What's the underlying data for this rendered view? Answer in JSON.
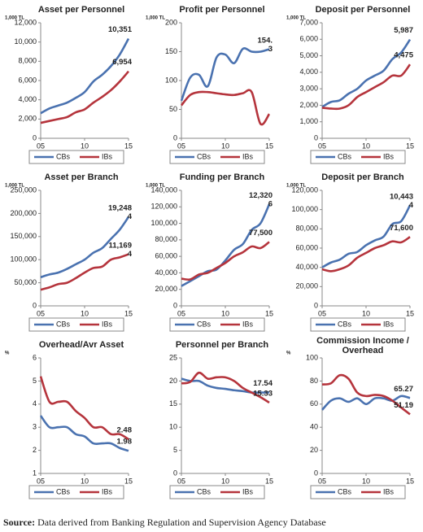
{
  "chart_data": [
    {
      "type": "line",
      "title": "Asset per Personnel",
      "unit": "1,000 TL",
      "x": [
        5,
        6,
        7,
        8,
        9,
        10,
        11,
        12,
        13,
        14,
        15
      ],
      "xlim": [
        5,
        15
      ],
      "xticks": [
        {
          "value": 5,
          "label": "05"
        },
        10,
        15
      ],
      "ylim": [
        0,
        12000
      ],
      "yticks": [
        0,
        {
          "value": 2000,
          "label": "2,000"
        },
        {
          "value": 4000,
          "label": "4,000"
        },
        {
          "value": 6000,
          "label": "6,000"
        },
        {
          "value": 8000,
          "label": "8,000"
        },
        {
          "value": 10000,
          "label": "10,000"
        },
        {
          "value": 12000,
          "label": "12,000"
        }
      ],
      "series": [
        {
          "name": "CBs",
          "color": "#4a72b0",
          "values": [
            2600,
            3100,
            3400,
            3700,
            4200,
            4800,
            5900,
            6600,
            7500,
            8700,
            10351
          ],
          "value_labels": [
            null,
            null,
            null,
            null,
            null,
            null,
            null,
            null,
            null,
            null,
            "10,351"
          ]
        },
        {
          "name": "IBs",
          "color": "#b5343c",
          "values": [
            1600,
            1800,
            2000,
            2200,
            2700,
            3000,
            3700,
            4300,
            5000,
            5900,
            6954
          ],
          "value_labels": [
            null,
            null,
            null,
            null,
            null,
            null,
            null,
            null,
            null,
            null,
            "6,954"
          ]
        }
      ]
    },
    {
      "type": "line",
      "title": "Profit per Personnel",
      "unit": "1,000 TL",
      "label_color": "#222222",
      "x": [
        5,
        6,
        7,
        8,
        9,
        10,
        11,
        12,
        13,
        14,
        15
      ],
      "xlim": [
        5,
        15
      ],
      "xticks": [
        {
          "value": 5,
          "label": "05"
        },
        10,
        15
      ],
      "ylim": [
        0,
        200
      ],
      "yticks": [
        0,
        50,
        100,
        150,
        200
      ],
      "series": [
        {
          "name": "CBs",
          "color": "#4a72b0",
          "values": [
            65,
            105,
            110,
            90,
            140,
            145,
            130,
            155,
            150,
            150,
            154.3
          ],
          "value_labels": [
            null,
            null,
            null,
            null,
            null,
            null,
            null,
            null,
            null,
            null,
            "154.\n3"
          ]
        },
        {
          "name": "IBs",
          "color": "#b5343c",
          "values": [
            57,
            75,
            80,
            80,
            78,
            76,
            75,
            78,
            80,
            25,
            42.1
          ]
        }
      ]
    },
    {
      "type": "line",
      "title": "Deposit per Personnel",
      "unit": "1,000 TL",
      "x": [
        5,
        6,
        7,
        8,
        9,
        10,
        11,
        12,
        13,
        14,
        15
      ],
      "xlim": [
        5,
        15
      ],
      "xticks": [
        {
          "value": 5,
          "label": "05"
        },
        10,
        15
      ],
      "ylim": [
        0,
        7000
      ],
      "yticks": [
        0,
        {
          "value": 1000,
          "label": "1,000"
        },
        {
          "value": 2000,
          "label": "2,000"
        },
        {
          "value": 3000,
          "label": "3,000"
        },
        {
          "value": 4000,
          "label": "4,000"
        },
        {
          "value": 5000,
          "label": "5,000"
        },
        {
          "value": 6000,
          "label": "6,000"
        },
        {
          "value": 7000,
          "label": "7,000"
        }
      ],
      "series": [
        {
          "name": "CBs",
          "color": "#4a72b0",
          "values": [
            1900,
            2200,
            2300,
            2700,
            3000,
            3500,
            3800,
            4100,
            4800,
            5200,
            5987
          ],
          "value_labels": [
            null,
            null,
            null,
            null,
            null,
            null,
            null,
            null,
            null,
            null,
            "5,987"
          ]
        },
        {
          "name": "IBs",
          "color": "#b5343c",
          "values": [
            1850,
            1800,
            1800,
            2000,
            2500,
            2800,
            3100,
            3400,
            3800,
            3800,
            4475
          ],
          "value_labels": [
            null,
            null,
            null,
            null,
            null,
            null,
            null,
            null,
            null,
            null,
            "4,475"
          ]
        }
      ]
    },
    {
      "type": "line",
      "title": "Asset per Branch",
      "unit": "1,000 TL",
      "x": [
        5,
        6,
        7,
        8,
        9,
        10,
        11,
        12,
        13,
        14,
        15
      ],
      "xlim": [
        5,
        15
      ],
      "xticks": [
        {
          "value": 5,
          "label": "05"
        },
        10,
        15
      ],
      "ylim": [
        0,
        250000
      ],
      "yticks": [
        0,
        {
          "value": 50000,
          "label": "50,000"
        },
        {
          "value": 100000,
          "label": "100,000"
        },
        {
          "value": 150000,
          "label": "150,000"
        },
        {
          "value": 200000,
          "label": "200,000"
        },
        {
          "value": 250000,
          "label": "250,000"
        }
      ],
      "series": [
        {
          "name": "CBs",
          "color": "#4a72b0",
          "values": [
            62000,
            68000,
            72000,
            80000,
            90000,
            100000,
            115000,
            125000,
            145000,
            165000,
            192484
          ],
          "value_labels": [
            null,
            null,
            null,
            null,
            null,
            null,
            null,
            null,
            null,
            null,
            "19,248\n4"
          ]
        },
        {
          "name": "IBs",
          "color": "#b5343c",
          "values": [
            35000,
            40000,
            47000,
            50000,
            60000,
            72000,
            82000,
            85000,
            100000,
            105000,
            111694
          ],
          "value_labels": [
            null,
            null,
            null,
            null,
            null,
            null,
            null,
            null,
            null,
            null,
            "11,169\n4"
          ]
        }
      ]
    },
    {
      "type": "line",
      "title": "Funding per Branch",
      "unit": "1,000 TL",
      "x": [
        5,
        6,
        7,
        8,
        9,
        10,
        11,
        12,
        13,
        14,
        15
      ],
      "xlim": [
        5,
        15
      ],
      "xticks": [
        {
          "value": 5,
          "label": "05"
        },
        10,
        15
      ],
      "ylim": [
        0,
        140000
      ],
      "yticks": [
        0,
        {
          "value": 20000,
          "label": "20,000"
        },
        {
          "value": 40000,
          "label": "40,000"
        },
        {
          "value": 60000,
          "label": "60,000"
        },
        {
          "value": 80000,
          "label": "80,000"
        },
        {
          "value": 100000,
          "label": "100,000"
        },
        {
          "value": 120000,
          "label": "120,000"
        },
        {
          "value": 140000,
          "label": "140,000"
        }
      ],
      "series": [
        {
          "name": "CBs",
          "color": "#4a72b0",
          "values": [
            24000,
            30000,
            36000,
            42000,
            44000,
            55000,
            68000,
            75000,
            92000,
            100000,
            123206
          ],
          "value_labels": [
            null,
            null,
            null,
            null,
            null,
            null,
            null,
            null,
            null,
            null,
            "12,320\n6"
          ]
        },
        {
          "name": "IBs",
          "color": "#b5343c",
          "values": [
            33000,
            32000,
            38000,
            40000,
            46000,
            52000,
            60000,
            65000,
            72000,
            70000,
            77500
          ],
          "value_labels": [
            null,
            null,
            null,
            null,
            null,
            null,
            null,
            null,
            null,
            null,
            "77,500"
          ]
        }
      ]
    },
    {
      "type": "line",
      "title": "Deposit per Branch",
      "unit": "1,000 TL",
      "x": [
        5,
        6,
        7,
        8,
        9,
        10,
        11,
        12,
        13,
        14,
        15
      ],
      "xlim": [
        5,
        15
      ],
      "xticks": [
        {
          "value": 5,
          "label": "05"
        },
        10,
        15
      ],
      "ylim": [
        0,
        120000
      ],
      "yticks": [
        0,
        {
          "value": 20000,
          "label": "20,000"
        },
        {
          "value": 40000,
          "label": "40,000"
        },
        {
          "value": 60000,
          "label": "60,000"
        },
        {
          "value": 80000,
          "label": "80,000"
        },
        {
          "value": 100000,
          "label": "100,000"
        },
        {
          "value": 120000,
          "label": "120,000"
        }
      ],
      "series": [
        {
          "name": "CBs",
          "color": "#4a72b0",
          "values": [
            40000,
            45000,
            48000,
            54000,
            56000,
            63000,
            68000,
            72000,
            85000,
            88000,
            104434
          ],
          "value_labels": [
            null,
            null,
            null,
            null,
            null,
            null,
            null,
            null,
            null,
            null,
            "10,443\n4"
          ]
        },
        {
          "name": "IBs",
          "color": "#b5343c",
          "values": [
            38000,
            36000,
            38000,
            42000,
            50000,
            55000,
            60000,
            63000,
            67000,
            66000,
            71600
          ],
          "value_labels": [
            null,
            null,
            null,
            null,
            null,
            null,
            null,
            null,
            null,
            null,
            "71,600"
          ]
        }
      ]
    },
    {
      "type": "line",
      "title": "Overhead/Avr Asset",
      "unit": "%",
      "x": [
        5,
        6,
        7,
        8,
        9,
        10,
        11,
        12,
        13,
        14,
        15
      ],
      "xlim": [
        5,
        15
      ],
      "xticks": [
        {
          "value": 5,
          "label": "05"
        },
        10,
        15
      ],
      "ylim": [
        1,
        6
      ],
      "yticks": [
        1,
        2,
        3,
        4,
        5,
        6
      ],
      "series": [
        {
          "name": "CBs",
          "color": "#4a72b0",
          "values": [
            3.5,
            3.0,
            3.0,
            3.0,
            2.7,
            2.6,
            2.3,
            2.3,
            2.3,
            2.1,
            1.98
          ],
          "value_labels": [
            null,
            null,
            null,
            null,
            null,
            null,
            null,
            null,
            null,
            null,
            "1.98"
          ]
        },
        {
          "name": "IBs",
          "color": "#b5343c",
          "values": [
            5.2,
            4.1,
            4.1,
            4.1,
            3.7,
            3.4,
            3.0,
            3.0,
            2.7,
            2.7,
            2.48
          ],
          "value_labels": [
            null,
            null,
            null,
            null,
            null,
            null,
            null,
            null,
            null,
            null,
            "2.48"
          ]
        }
      ]
    },
    {
      "type": "line",
      "title": "Personnel per Branch",
      "x": [
        5,
        6,
        7,
        8,
        9,
        10,
        11,
        12,
        13,
        14,
        15
      ],
      "xlim": [
        5,
        15
      ],
      "xticks": [
        {
          "value": 5,
          "label": "05"
        },
        10,
        15
      ],
      "ylim": [
        0,
        25
      ],
      "yticks": [
        0,
        5,
        10,
        15,
        20,
        25
      ],
      "series": [
        {
          "name": "CBs",
          "color": "#4a72b0",
          "values": [
            20.5,
            20.0,
            20.0,
            19.0,
            18.5,
            18.3,
            18.0,
            17.8,
            17.5,
            17.5,
            17.54
          ],
          "value_labels": [
            null,
            null,
            null,
            null,
            null,
            null,
            null,
            null,
            null,
            null,
            "17.54"
          ]
        },
        {
          "name": "IBs",
          "color": "#b5343c",
          "values": [
            19.5,
            19.8,
            21.8,
            20.5,
            20.8,
            20.8,
            20.0,
            18.5,
            17.5,
            16.5,
            15.33
          ],
          "value_labels": [
            null,
            null,
            null,
            null,
            null,
            null,
            null,
            null,
            null,
            null,
            "15.33"
          ]
        }
      ]
    },
    {
      "type": "line",
      "title": "Commission Income /\nOverhead",
      "unit": "%",
      "x": [
        5,
        6,
        7,
        8,
        9,
        10,
        11,
        12,
        13,
        14,
        15
      ],
      "xlim": [
        5,
        15
      ],
      "xticks": [
        {
          "value": 5,
          "label": "05"
        },
        10,
        15
      ],
      "ylim": [
        0,
        100
      ],
      "yticks": [
        0,
        20,
        40,
        60,
        80,
        100
      ],
      "series": [
        {
          "name": "CBs",
          "color": "#4a72b0",
          "values": [
            55,
            63,
            65,
            62,
            65,
            60,
            65,
            65,
            63,
            67,
            65.27
          ],
          "value_labels": [
            null,
            null,
            null,
            null,
            null,
            null,
            null,
            null,
            null,
            null,
            "65.27"
          ]
        },
        {
          "name": "IBs",
          "color": "#b5343c",
          "values": [
            77,
            78,
            85,
            82,
            70,
            67,
            68,
            67,
            63,
            57,
            51.19
          ],
          "value_labels": [
            null,
            null,
            null,
            null,
            null,
            null,
            null,
            null,
            null,
            null,
            "51.19"
          ]
        }
      ]
    }
  ],
  "source": {
    "label": "Source:",
    "text": "Data derived from Banking Regulation and Supervision Agency Database"
  }
}
